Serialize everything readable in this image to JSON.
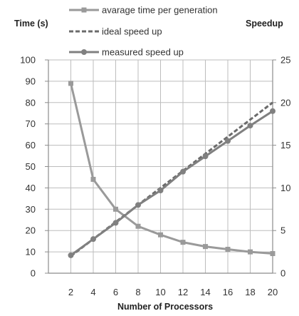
{
  "chart_data": {
    "type": "line",
    "x": [
      2,
      4,
      6,
      8,
      10,
      12,
      14,
      16,
      18,
      20
    ],
    "xlabel": "Number of Processors",
    "ylabel_left": "Time (s)",
    "ylabel_right": "Speedup",
    "ylim_left": [
      0,
      100
    ],
    "ylim_right": [
      0,
      25
    ],
    "yticks_left": [
      "0",
      "10",
      "20",
      "30",
      "40",
      "50",
      "60",
      "70",
      "80",
      "90",
      "100"
    ],
    "yticks_right": [
      "0",
      "5",
      "10",
      "15",
      "20",
      "25"
    ],
    "xticks": [
      "2",
      "4",
      "6",
      "8",
      "10",
      "12",
      "14",
      "16",
      "18",
      "20"
    ],
    "grid": true,
    "legend_position": "top",
    "series": [
      {
        "name": "avarage time per generation",
        "axis": "left",
        "style": "solid",
        "color": "#9a9a9a",
        "values": [
          89,
          44,
          30,
          22,
          18,
          14.5,
          12.5,
          11.2,
          10,
          9.2
        ]
      },
      {
        "name": "ideal speed up",
        "axis": "right",
        "style": "dashed",
        "color": "#6b6b6b",
        "values": [
          2,
          4,
          6,
          8,
          10,
          12,
          14,
          16,
          18,
          20
        ]
      },
      {
        "name": "measured speed up",
        "axis": "right",
        "style": "solid",
        "color": "#808080",
        "values": [
          2.1,
          4,
          5.9,
          8,
          9.7,
          11.9,
          13.7,
          15.5,
          17.3,
          19
        ]
      }
    ]
  }
}
